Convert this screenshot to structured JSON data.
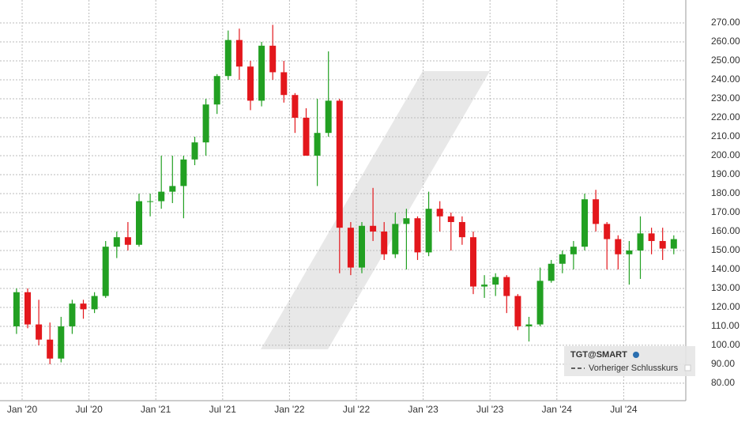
{
  "chart_data": {
    "type": "candlestick",
    "series_name": "TGT@SMART",
    "legend_items": [
      "Vorheriger Schlusskurs"
    ],
    "up_color": "#22a022",
    "down_color": "#e3171c",
    "grid": true,
    "ylim": [
      70.8,
      282.1
    ],
    "yticks": [
      {
        "value": 80,
        "label": "80.00"
      },
      {
        "value": 90,
        "label": "90.00"
      },
      {
        "value": 100,
        "label": "100.00"
      },
      {
        "value": 110,
        "label": "110.00"
      },
      {
        "value": 120,
        "label": "120.00"
      },
      {
        "value": 130,
        "label": "130.00"
      },
      {
        "value": 140,
        "label": "140.00"
      },
      {
        "value": 150,
        "label": "150.00"
      },
      {
        "value": 160,
        "label": "160.00"
      },
      {
        "value": 170,
        "label": "170.00"
      },
      {
        "value": 180,
        "label": "180.00"
      },
      {
        "value": 190,
        "label": "190.00"
      },
      {
        "value": 200,
        "label": "200.00"
      },
      {
        "value": 210,
        "label": "210.00"
      },
      {
        "value": 220,
        "label": "220.00"
      },
      {
        "value": 230,
        "label": "230.00"
      },
      {
        "value": 240,
        "label": "240.00"
      },
      {
        "value": 250,
        "label": "250.00"
      },
      {
        "value": 260,
        "label": "260.00"
      },
      {
        "value": 270,
        "label": "270.00"
      }
    ],
    "xticks": [
      {
        "value": "2020-01",
        "label": "Jan '20"
      },
      {
        "value": "2020-07",
        "label": "Jul '20"
      },
      {
        "value": "2021-01",
        "label": "Jan '21"
      },
      {
        "value": "2021-07",
        "label": "Jul '21"
      },
      {
        "value": "2022-01",
        "label": "Jan '22"
      },
      {
        "value": "2022-07",
        "label": "Jul '22"
      },
      {
        "value": "2023-01",
        "label": "Jan '23"
      },
      {
        "value": "2023-07",
        "label": "Jul '23"
      },
      {
        "value": "2024-01",
        "label": "Jan '24"
      },
      {
        "value": "2024-07",
        "label": "Jul '24"
      }
    ],
    "x": [
      "2019-12",
      "2020-01",
      "2020-02",
      "2020-03",
      "2020-04",
      "2020-05",
      "2020-06",
      "2020-07",
      "2020-08",
      "2020-09",
      "2020-10",
      "2020-11",
      "2020-12",
      "2021-01",
      "2021-02",
      "2021-03",
      "2021-04",
      "2021-05",
      "2021-06",
      "2021-07",
      "2021-08",
      "2021-09",
      "2021-10",
      "2021-11",
      "2021-12",
      "2022-01",
      "2022-02",
      "2022-03",
      "2022-04",
      "2022-05",
      "2022-06",
      "2022-07",
      "2022-08",
      "2022-09",
      "2022-10",
      "2022-11",
      "2022-12",
      "2023-01",
      "2023-02",
      "2023-03",
      "2023-04",
      "2023-05",
      "2023-06",
      "2023-07",
      "2023-08",
      "2023-09",
      "2023-10",
      "2023-11",
      "2023-12",
      "2024-01",
      "2024-02",
      "2024-03",
      "2024-04",
      "2024-05",
      "2024-06",
      "2024-07",
      "2024-08",
      "2024-09",
      "2024-10",
      "2024-11"
    ],
    "open": [
      110,
      128,
      111,
      103,
      93,
      110,
      122,
      119,
      126,
      152,
      157,
      153,
      176,
      176,
      181,
      184,
      198,
      207,
      227,
      242,
      261,
      247,
      229,
      258,
      244,
      232,
      220,
      200,
      212,
      229,
      162,
      141,
      163,
      160,
      148,
      164,
      167,
      149,
      172,
      168,
      165,
      157,
      131,
      132,
      136,
      126,
      110,
      111,
      134,
      143,
      148,
      152,
      177,
      164,
      156,
      148,
      150,
      159,
      155,
      151
    ],
    "high": [
      130,
      130,
      124,
      112,
      115,
      124,
      124,
      128,
      155,
      160,
      165,
      180,
      180,
      200,
      200,
      200,
      210,
      230,
      243,
      266,
      267,
      250,
      260,
      269,
      250,
      233,
      225,
      230,
      255,
      230,
      165,
      165,
      183,
      165,
      170,
      172,
      168,
      181,
      176,
      170,
      168,
      160,
      137,
      138,
      137,
      127,
      115,
      141,
      145,
      150,
      155,
      180,
      182,
      165,
      158,
      155,
      168,
      162,
      162,
      158
    ],
    "low": [
      106,
      109,
      100,
      90,
      91,
      106,
      114,
      117,
      125,
      146,
      150,
      152,
      168,
      172,
      175,
      167,
      195,
      200,
      222,
      240,
      240,
      224,
      226,
      240,
      228,
      212,
      200,
      184,
      210,
      138,
      137,
      138,
      155,
      145,
      146,
      140,
      145,
      147,
      160,
      150,
      153,
      127,
      125,
      126,
      117,
      108,
      102,
      110,
      133,
      138,
      140,
      150,
      160,
      140,
      140,
      132,
      135,
      148,
      145,
      148
    ],
    "close": [
      128,
      111,
      103,
      93,
      110,
      122,
      119,
      126,
      152,
      157,
      153,
      176,
      176,
      181,
      184,
      198,
      207,
      227,
      242,
      261,
      247,
      229,
      258,
      244,
      232,
      220,
      200,
      212,
      229,
      162,
      141,
      163,
      160,
      148,
      164,
      167,
      149,
      172,
      168,
      165,
      157,
      131,
      132,
      136,
      126,
      110,
      111,
      134,
      143,
      148,
      152,
      177,
      164,
      156,
      148,
      150,
      159,
      155,
      151,
      156
    ]
  }
}
